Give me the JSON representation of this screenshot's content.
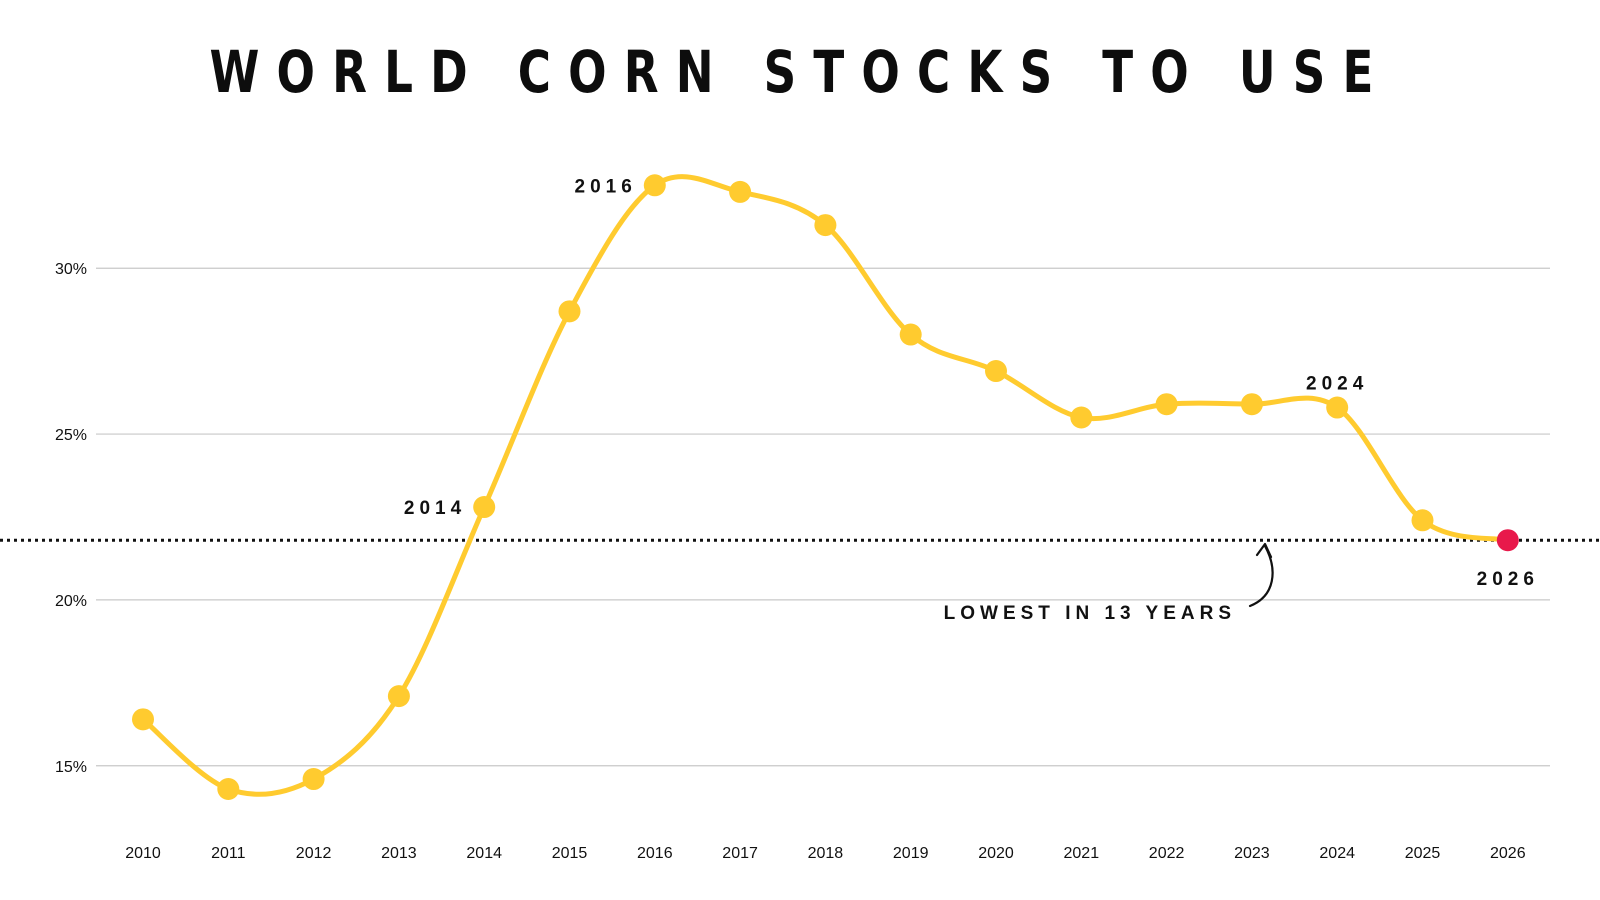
{
  "chart_data": {
    "type": "line",
    "title": "WORLD CORN STOCKS TO USE",
    "x": [
      "2010",
      "2011",
      "2012",
      "2013",
      "2014",
      "2015",
      "2016",
      "2017",
      "2018",
      "2019",
      "2020",
      "2021",
      "2022",
      "2023",
      "2024",
      "2025",
      "2026"
    ],
    "values": [
      16.4,
      14.3,
      14.6,
      17.1,
      22.8,
      28.7,
      32.5,
      32.3,
      31.3,
      28.0,
      26.9,
      25.5,
      25.9,
      25.9,
      25.8,
      22.4,
      21.8
    ],
    "ylim": [
      12.4,
      34.8
    ],
    "yticks": [
      15,
      20,
      25,
      30
    ],
    "ytick_labels": [
      "15%",
      "20%",
      "25%",
      "30%"
    ],
    "grid": true,
    "line_color": "#FFCB2F",
    "highlight_color": "#E8194B",
    "reference_line": {
      "value": 21.8,
      "style": "dotted"
    },
    "point_labels": [
      {
        "index": 4,
        "text": "2014",
        "side": "left"
      },
      {
        "index": 6,
        "text": "2016",
        "side": "left"
      },
      {
        "index": 14,
        "text": "2024",
        "side": "above"
      },
      {
        "index": 16,
        "text": "2026",
        "side": "below"
      }
    ],
    "annotation": {
      "text": "LOWEST IN 13 YEARS"
    }
  }
}
